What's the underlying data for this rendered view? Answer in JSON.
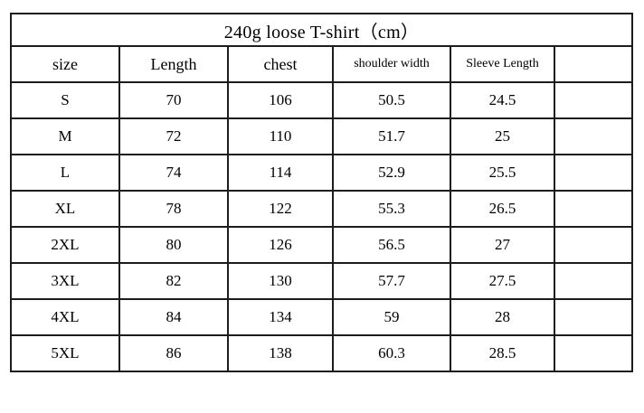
{
  "colors": {
    "background": "#ffffff",
    "border": "#1c1c1c",
    "text": "#000000"
  },
  "table": {
    "title": "240g loose T-shirt（cm）",
    "columns": [
      "size",
      "Length",
      "chest",
      "shoulder width",
      "Sleeve Length",
      ""
    ],
    "rows": [
      [
        "S",
        "70",
        "106",
        "50.5",
        "24.5",
        ""
      ],
      [
        "M",
        "72",
        "110",
        "51.7",
        "25",
        ""
      ],
      [
        "L",
        "74",
        "114",
        "52.9",
        "25.5",
        ""
      ],
      [
        "XL",
        "78",
        "122",
        "55.3",
        "26.5",
        ""
      ],
      [
        "2XL",
        "80",
        "126",
        "56.5",
        "27",
        ""
      ],
      [
        "3XL",
        "82",
        "130",
        "57.7",
        "27.5",
        ""
      ],
      [
        "4XL",
        "84",
        "134",
        "59",
        "28",
        ""
      ],
      [
        "5XL",
        "86",
        "138",
        "60.3",
        "28.5",
        ""
      ]
    ]
  }
}
